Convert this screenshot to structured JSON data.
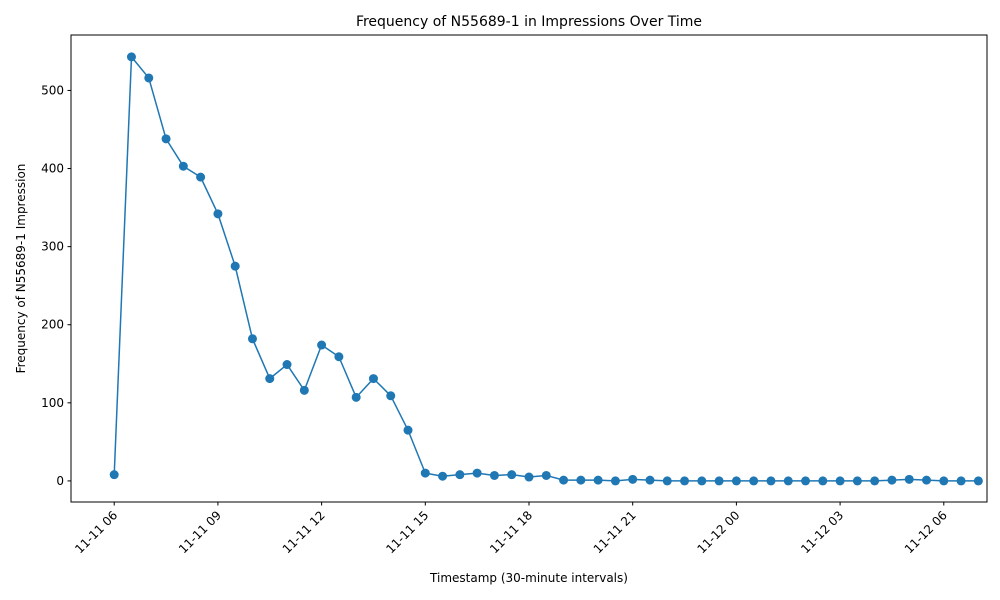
{
  "chart_data": {
    "type": "line",
    "title": "Frequency of N55689-1 in Impressions Over Time",
    "xlabel": "Timestamp (30-minute intervals)",
    "ylabel": "Frequency of N55689-1 Impression",
    "x_start": "2019-11-11 06:00",
    "x_step_minutes": 30,
    "xlim": [
      "2019-11-11 04:45",
      "2019-11-12 07:15"
    ],
    "ylim": [
      -27,
      571
    ],
    "x_ticks": [
      "11-11 06",
      "11-11 09",
      "11-11 12",
      "11-11 15",
      "11-11 18",
      "11-11 21",
      "11-12 00",
      "11-12 03",
      "11-12 06"
    ],
    "y_ticks": [
      "0",
      "100",
      "200",
      "300",
      "400",
      "500"
    ],
    "grid": false,
    "color": "#1f77b4",
    "series": [
      {
        "values": [
          8,
          543,
          516,
          438,
          403,
          389,
          342,
          275,
          182,
          131,
          149,
          116,
          174,
          159,
          107,
          131,
          109,
          65,
          10,
          6,
          8,
          10,
          7,
          8,
          5,
          7,
          1,
          1,
          1,
          0,
          2,
          1,
          0,
          0,
          0,
          0,
          0,
          0,
          0,
          0,
          0,
          0,
          0,
          0,
          0,
          1,
          2,
          1,
          0,
          0,
          0
        ]
      }
    ]
  }
}
